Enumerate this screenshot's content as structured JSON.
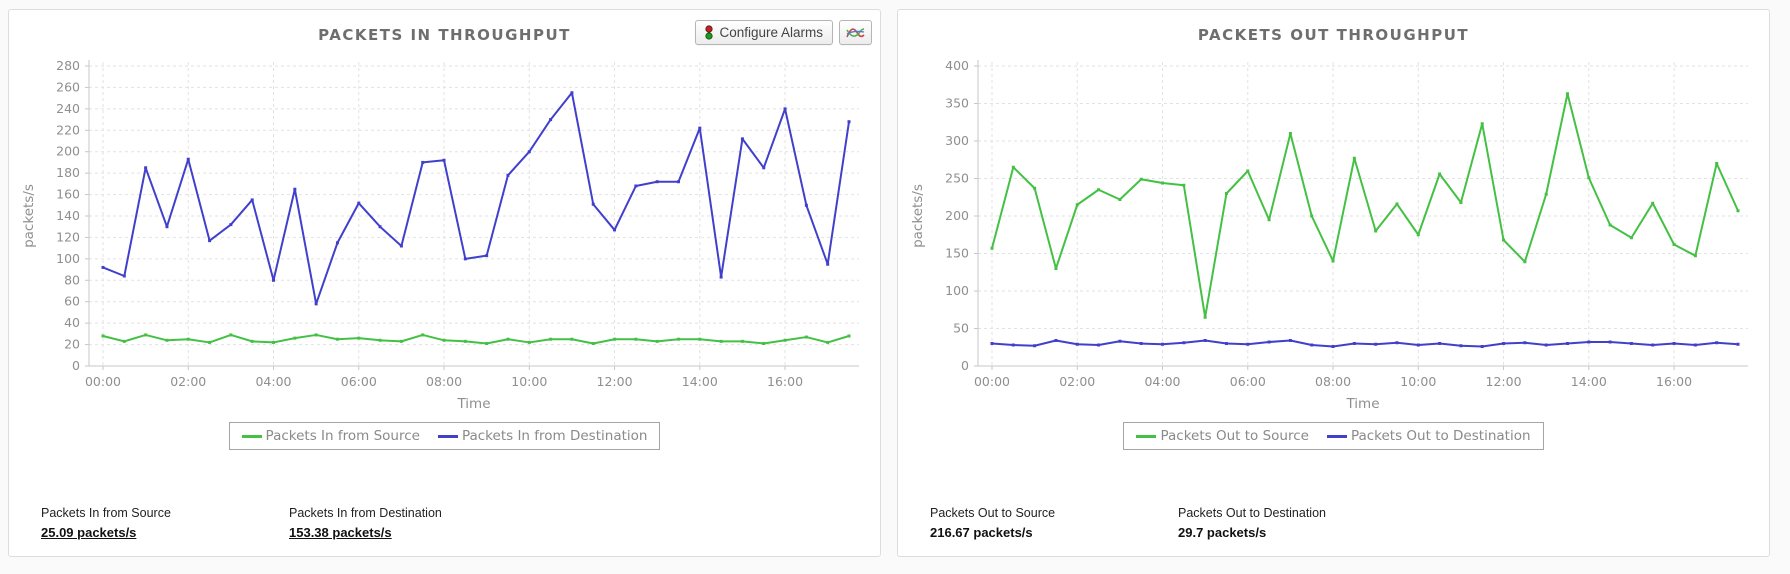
{
  "toolbar": {
    "configure_alarms": "Configure Alarms"
  },
  "colors": {
    "green": "#44c144",
    "blue": "#4040cc",
    "grid": "#e2e2e2",
    "axis": "#c7c7c7",
    "tick_text": "#8f8f8f"
  },
  "chart_data": [
    {
      "type": "line",
      "title": "PACKETS IN THROUGHPUT",
      "xlabel": "Time",
      "ylabel": "packets/s",
      "ylim": [
        0,
        280
      ],
      "ytick_step": 20,
      "grid": true,
      "legend_position": "bottom",
      "x": [
        "00:00",
        "00:30",
        "01:00",
        "01:30",
        "02:00",
        "02:30",
        "03:00",
        "03:30",
        "04:00",
        "04:30",
        "05:00",
        "05:30",
        "06:00",
        "06:30",
        "07:00",
        "07:30",
        "08:00",
        "08:30",
        "09:00",
        "09:30",
        "10:00",
        "10:30",
        "11:00",
        "11:30",
        "12:00",
        "12:30",
        "13:00",
        "13:30",
        "14:00",
        "14:30",
        "15:00",
        "15:30",
        "16:00",
        "16:30",
        "17:00",
        "17:30"
      ],
      "xtick_every": 4,
      "series": [
        {
          "name": "Packets In from Source",
          "color": "#44c144",
          "values": [
            28,
            23,
            29,
            24,
            25,
            22,
            29,
            23,
            22,
            26,
            29,
            25,
            26,
            24,
            23,
            29,
            24,
            23,
            21,
            25,
            22,
            25,
            25,
            21,
            25,
            25,
            23,
            25,
            25,
            23,
            23,
            21,
            24,
            27,
            22,
            28
          ]
        },
        {
          "name": "Packets In from Destination",
          "color": "#4040cc",
          "values": [
            92,
            84,
            185,
            130,
            193,
            117,
            132,
            155,
            80,
            165,
            58,
            115,
            152,
            130,
            112,
            190,
            192,
            100,
            103,
            178,
            200,
            230,
            255,
            151,
            127,
            168,
            172,
            172,
            222,
            83,
            212,
            185,
            240,
            150,
            95,
            228
          ]
        }
      ]
    },
    {
      "type": "line",
      "title": "PACKETS OUT THROUGHPUT",
      "xlabel": "Time",
      "ylabel": "packets/s",
      "ylim": [
        0,
        400
      ],
      "ytick_step": 50,
      "grid": true,
      "legend_position": "bottom",
      "x": [
        "00:00",
        "00:30",
        "01:00",
        "01:30",
        "02:00",
        "02:30",
        "03:00",
        "03:30",
        "04:00",
        "04:30",
        "05:00",
        "05:30",
        "06:00",
        "06:30",
        "07:00",
        "07:30",
        "08:00",
        "08:30",
        "09:00",
        "09:30",
        "10:00",
        "10:30",
        "11:00",
        "11:30",
        "12:00",
        "12:30",
        "13:00",
        "13:30",
        "14:00",
        "14:30",
        "15:00",
        "15:30",
        "16:00",
        "16:30",
        "17:00",
        "17:30"
      ],
      "xtick_every": 4,
      "series": [
        {
          "name": "Packets Out to Source",
          "color": "#44c144",
          "values": [
            157,
            265,
            237,
            130,
            215,
            235,
            222,
            249,
            244,
            241,
            65,
            230,
            260,
            195,
            310,
            200,
            140,
            277,
            180,
            216,
            175,
            256,
            218,
            323,
            168,
            139,
            229,
            363,
            251,
            188,
            171,
            217,
            162,
            147,
            270,
            207
          ]
        },
        {
          "name": "Packets Out to Destination",
          "color": "#4040cc",
          "values": [
            30,
            28,
            27,
            34,
            29,
            28,
            33,
            30,
            29,
            31,
            34,
            30,
            29,
            32,
            34,
            28,
            26,
            30,
            29,
            31,
            28,
            30,
            27,
            26,
            30,
            31,
            28,
            30,
            32,
            32,
            30,
            28,
            30,
            28,
            31,
            29
          ]
        }
      ]
    }
  ],
  "panels": [
    {
      "stats": [
        {
          "label": "Packets In from Source",
          "value": "25.09 packets/s"
        },
        {
          "label": "Packets In from Destination",
          "value": "153.38 packets/s"
        }
      ]
    },
    {
      "stats": [
        {
          "label": "Packets Out to Source",
          "value": "216.67 packets/s"
        },
        {
          "label": "Packets Out to Destination",
          "value": "29.7 packets/s"
        }
      ]
    }
  ]
}
